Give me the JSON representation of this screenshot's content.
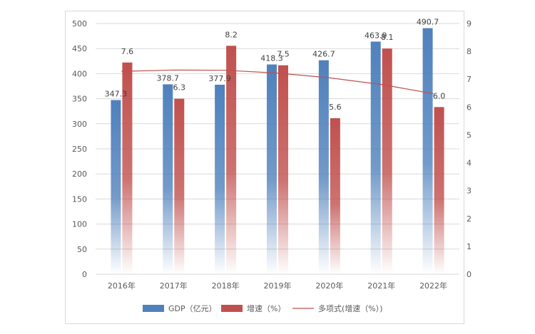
{
  "chart_data": {
    "type": "bar",
    "categories": [
      "2016年",
      "2017年",
      "2018年",
      "2019年",
      "2020年",
      "2021年",
      "2022年"
    ],
    "series": [
      {
        "name": "GDP（亿元）",
        "axis": "left",
        "values": [
          347.3,
          378.7,
          377.9,
          418.3,
          426.7,
          463.9,
          490.7
        ],
        "labels": [
          "347.3",
          "378.7",
          "377.9",
          "418.3",
          "426.7",
          "463.9",
          "490.7"
        ],
        "color": "#4f81bd"
      },
      {
        "name": "增速（%）",
        "axis": "right",
        "values": [
          7.6,
          6.3,
          8.2,
          7.5,
          5.6,
          8.1,
          6.0
        ],
        "labels": [
          "7.6",
          "6.3",
          "8.2",
          "7.5",
          "5.6",
          "8.1",
          "6.0"
        ],
        "color": "#c0504d"
      }
    ],
    "trendline": {
      "name": "多项式(增速（%）)",
      "type": "polynomial",
      "values": [
        7.28,
        7.33,
        7.32,
        7.22,
        7.05,
        6.81,
        6.48
      ],
      "color": "#c0504d"
    },
    "y_left": {
      "range": [
        0,
        500
      ],
      "ticks": [
        "0",
        "50",
        "100",
        "150",
        "200",
        "250",
        "300",
        "350",
        "400",
        "450",
        "500"
      ]
    },
    "y_right": {
      "range": [
        0,
        9
      ],
      "ticks": [
        "0",
        "1",
        "2",
        "3",
        "4",
        "5",
        "6",
        "7",
        "8",
        "9"
      ]
    },
    "grid": true,
    "legend": "bottom"
  }
}
